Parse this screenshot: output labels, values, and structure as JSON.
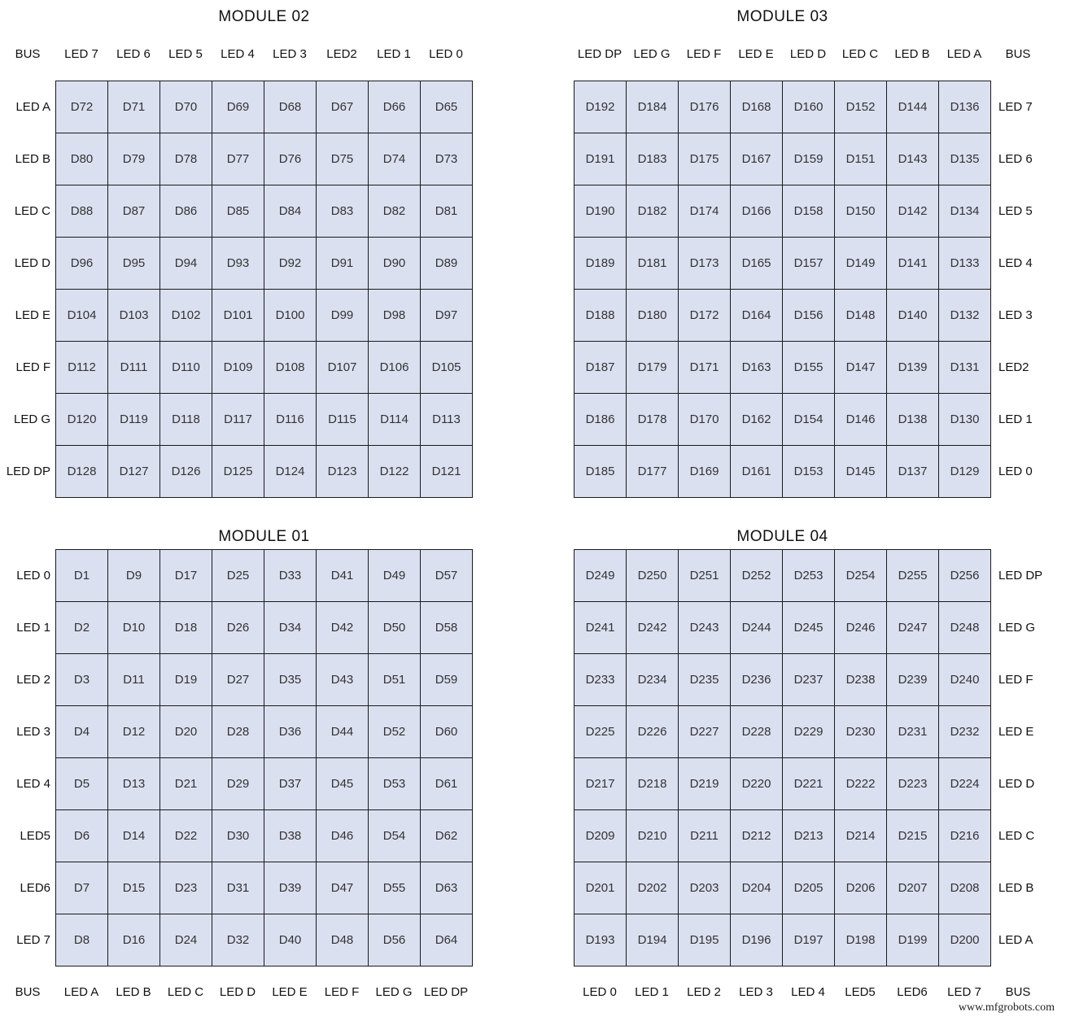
{
  "watermark": "www.mfgrobots.com",
  "modules": [
    {
      "id": "module-02",
      "title": "MODULE 02",
      "bus_label": "BUS",
      "col_headers": [
        "LED 7",
        "LED 6",
        "LED 5",
        "LED 4",
        "LED 3",
        "LED2",
        "LED 1",
        "LED 0"
      ],
      "row_labels": [
        "LED A",
        "LED B",
        "LED C",
        "LED D",
        "LED E",
        "LED F",
        "LED G",
        "LED DP"
      ],
      "rows": [
        [
          "D72",
          "D71",
          "D70",
          "D69",
          "D68",
          "D67",
          "D66",
          "D65"
        ],
        [
          "D80",
          "D79",
          "D78",
          "D77",
          "D76",
          "D75",
          "D74",
          "D73"
        ],
        [
          "D88",
          "D87",
          "D86",
          "D85",
          "D84",
          "D83",
          "D82",
          "D81"
        ],
        [
          "D96",
          "D95",
          "D94",
          "D93",
          "D92",
          "D91",
          "D90",
          "D89"
        ],
        [
          "D104",
          "D103",
          "D102",
          "D101",
          "D100",
          "D99",
          "D98",
          "D97"
        ],
        [
          "D112",
          "D111",
          "D110",
          "D109",
          "D108",
          "D107",
          "D106",
          "D105"
        ],
        [
          "D120",
          "D119",
          "D118",
          "D117",
          "D116",
          "D115",
          "D114",
          "D113"
        ],
        [
          "D128",
          "D127",
          "D126",
          "D125",
          "D124",
          "D123",
          "D122",
          "D121"
        ]
      ]
    },
    {
      "id": "module-03",
      "title": "MODULE 03",
      "bus_label": "BUS",
      "col_headers": [
        "LED DP",
        "LED G",
        "LED F",
        "LED E",
        "LED D",
        "LED C",
        "LED B",
        "LED A"
      ],
      "row_labels": [
        "LED 7",
        "LED 6",
        "LED 5",
        "LED 4",
        "LED 3",
        "LED2",
        "LED 1",
        "LED 0"
      ],
      "rows": [
        [
          "D192",
          "D184",
          "D176",
          "D168",
          "D160",
          "D152",
          "D144",
          "D136"
        ],
        [
          "D191",
          "D183",
          "D175",
          "D167",
          "D159",
          "D151",
          "D143",
          "D135"
        ],
        [
          "D190",
          "D182",
          "D174",
          "D166",
          "D158",
          "D150",
          "D142",
          "D134"
        ],
        [
          "D189",
          "D181",
          "D173",
          "D165",
          "D157",
          "D149",
          "D141",
          "D133"
        ],
        [
          "D188",
          "D180",
          "D172",
          "D164",
          "D156",
          "D148",
          "D140",
          "D132"
        ],
        [
          "D187",
          "D179",
          "D171",
          "D163",
          "D155",
          "D147",
          "D139",
          "D131"
        ],
        [
          "D186",
          "D178",
          "D170",
          "D162",
          "D154",
          "D146",
          "D138",
          "D130"
        ],
        [
          "D185",
          "D177",
          "D169",
          "D161",
          "D153",
          "D145",
          "D137",
          "D129"
        ]
      ]
    },
    {
      "id": "module-01",
      "title": "MODULE 01",
      "bus_label": "BUS",
      "col_headers": [
        "LED A",
        "LED B",
        "LED C",
        "LED D",
        "LED E",
        "LED F",
        "LED G",
        "LED DP"
      ],
      "row_labels": [
        "LED 0",
        "LED 1",
        "LED 2",
        "LED 3",
        "LED 4",
        "LED5",
        "LED6",
        "LED 7"
      ],
      "rows": [
        [
          "D1",
          "D9",
          "D17",
          "D25",
          "D33",
          "D41",
          "D49",
          "D57"
        ],
        [
          "D2",
          "D10",
          "D18",
          "D26",
          "D34",
          "D42",
          "D50",
          "D58"
        ],
        [
          "D3",
          "D11",
          "D19",
          "D27",
          "D35",
          "D43",
          "D51",
          "D59"
        ],
        [
          "D4",
          "D12",
          "D20",
          "D28",
          "D36",
          "D44",
          "D52",
          "D60"
        ],
        [
          "D5",
          "D13",
          "D21",
          "D29",
          "D37",
          "D45",
          "D53",
          "D61"
        ],
        [
          "D6",
          "D14",
          "D22",
          "D30",
          "D38",
          "D46",
          "D54",
          "D62"
        ],
        [
          "D7",
          "D15",
          "D23",
          "D31",
          "D39",
          "D47",
          "D55",
          "D63"
        ],
        [
          "D8",
          "D16",
          "D24",
          "D32",
          "D40",
          "D48",
          "D56",
          "D64"
        ]
      ]
    },
    {
      "id": "module-04",
      "title": "MODULE 04",
      "bus_label": "BUS",
      "col_headers": [
        "LED 0",
        "LED 1",
        "LED 2",
        "LED 3",
        "LED 4",
        "LED5",
        "LED6",
        "LED 7"
      ],
      "row_labels": [
        "LED DP",
        "LED G",
        "LED F",
        "LED E",
        "LED D",
        "LED C",
        "LED B",
        "LED A"
      ],
      "rows": [
        [
          "D249",
          "D250",
          "D251",
          "D252",
          "D253",
          "D254",
          "D255",
          "D256"
        ],
        [
          "D241",
          "D242",
          "D243",
          "D244",
          "D245",
          "D246",
          "D247",
          "D248"
        ],
        [
          "D233",
          "D234",
          "D235",
          "D236",
          "D237",
          "D238",
          "D239",
          "D240"
        ],
        [
          "D225",
          "D226",
          "D227",
          "D228",
          "D229",
          "D230",
          "D231",
          "D232"
        ],
        [
          "D217",
          "D218",
          "D219",
          "D220",
          "D221",
          "D222",
          "D223",
          "D224"
        ],
        [
          "D209",
          "D210",
          "D211",
          "D212",
          "D213",
          "D214",
          "D215",
          "D216"
        ],
        [
          "D201",
          "D202",
          "D203",
          "D204",
          "D205",
          "D206",
          "D207",
          "D208"
        ],
        [
          "D193",
          "D194",
          "D195",
          "D196",
          "D197",
          "D198",
          "D199",
          "D200"
        ]
      ]
    }
  ],
  "colors": {
    "cell_fill": "#dbe0f1",
    "grid_line": "#1a1a1a",
    "text": "#333333",
    "background": "#ffffff"
  }
}
